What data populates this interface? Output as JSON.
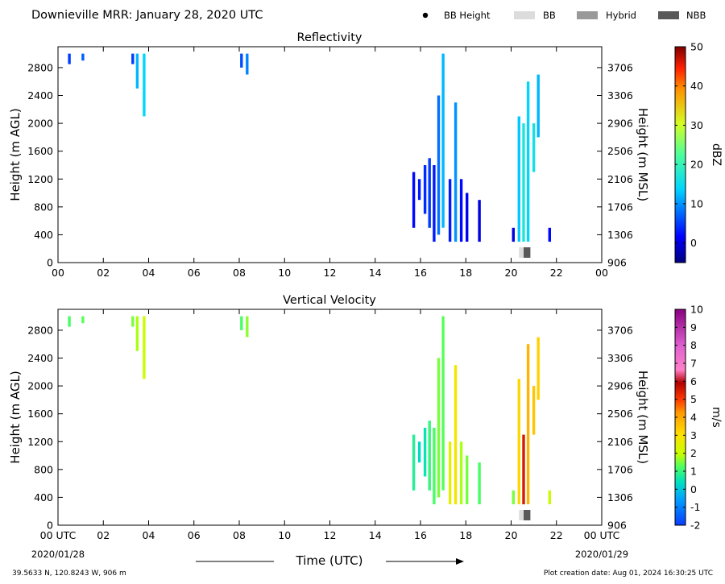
{
  "header": {
    "title": "Downieville MRR:  January 28, 2020 UTC",
    "legend": [
      {
        "label": "BB Height",
        "kind": "dot",
        "color": "#000000"
      },
      {
        "label": "BB",
        "kind": "box",
        "color": "#dcdcdc"
      },
      {
        "label": "Hybrid",
        "kind": "box",
        "color": "#999999"
      },
      {
        "label": "NBB",
        "kind": "box",
        "color": "#595959"
      }
    ]
  },
  "footer": {
    "location": "39.5633 N, 120.8243 W, 906 m",
    "creation": "Plot creation date: Aug 01, 2024 16:30:25 UTC",
    "xlabel": "Time (UTC)",
    "start_date": "2020/01/28",
    "end_date": "2020/01/29"
  },
  "chart_data": [
    {
      "type": "heatmap",
      "title": "Reflectivity",
      "ylabel": "Height (m AGL)",
      "ylabel_right": "Height (m MSL)",
      "xlim": [
        0,
        24
      ],
      "ylim": [
        0,
        3100
      ],
      "x_ticks": [
        "00",
        "02",
        "04",
        "06",
        "08",
        "10",
        "12",
        "14",
        "16",
        "18",
        "20",
        "22",
        "00"
      ],
      "y_ticks": [
        0,
        400,
        800,
        1200,
        1600,
        2000,
        2400,
        2800
      ],
      "y_ticks_right": [
        906,
        1306,
        1706,
        2106,
        2506,
        2906,
        3306,
        3706
      ],
      "colorbar": {
        "label": "dBZ",
        "min": -5,
        "max": 50,
        "ticks": [
          0,
          10,
          20,
          30,
          40,
          50
        ]
      },
      "bright_band": [
        {
          "class": "BB",
          "x_start": 20.35,
          "x_end": 20.55
        },
        {
          "class": "NBB",
          "x_start": 20.55,
          "x_end": 20.85
        }
      ],
      "echoes": [
        {
          "x": 0.5,
          "top": 3000,
          "bottom": 2850,
          "value": 5
        },
        {
          "x": 1.1,
          "top": 3000,
          "bottom": 2900,
          "value": 7
        },
        {
          "x": 3.3,
          "top": 3000,
          "bottom": 2850,
          "value": 5
        },
        {
          "x": 3.5,
          "top": 3000,
          "bottom": 2500,
          "value": 12
        },
        {
          "x": 3.8,
          "top": 3000,
          "bottom": 2100,
          "value": 14
        },
        {
          "x": 8.1,
          "top": 3000,
          "bottom": 2800,
          "value": 6
        },
        {
          "x": 8.35,
          "top": 3000,
          "bottom": 2700,
          "value": 9
        },
        {
          "x": 15.7,
          "top": 1300,
          "bottom": 500,
          "value": 2
        },
        {
          "x": 15.95,
          "top": 1200,
          "bottom": 900,
          "value": 3
        },
        {
          "x": 16.2,
          "top": 1400,
          "bottom": 700,
          "value": 4
        },
        {
          "x": 16.4,
          "top": 1500,
          "bottom": 500,
          "value": 5
        },
        {
          "x": 16.6,
          "top": 1400,
          "bottom": 300,
          "value": 3
        },
        {
          "x": 16.8,
          "top": 2400,
          "bottom": 400,
          "value": 8
        },
        {
          "x": 17.0,
          "top": 3000,
          "bottom": 500,
          "value": 12
        },
        {
          "x": 17.3,
          "top": 1200,
          "bottom": 300,
          "value": 3
        },
        {
          "x": 17.55,
          "top": 2300,
          "bottom": 300,
          "value": 10
        },
        {
          "x": 17.8,
          "top": 1200,
          "bottom": 300,
          "value": 2
        },
        {
          "x": 18.05,
          "top": 1000,
          "bottom": 300,
          "value": 1
        },
        {
          "x": 18.6,
          "top": 900,
          "bottom": 300,
          "value": 0
        },
        {
          "x": 20.1,
          "top": 500,
          "bottom": 300,
          "value": 0
        },
        {
          "x": 20.35,
          "top": 2100,
          "bottom": 300,
          "value": 13
        },
        {
          "x": 20.55,
          "top": 2000,
          "bottom": 300,
          "value": 17
        },
        {
          "x": 20.75,
          "top": 2600,
          "bottom": 300,
          "value": 14
        },
        {
          "x": 21.0,
          "top": 2000,
          "bottom": 1300,
          "value": 16
        },
        {
          "x": 21.2,
          "top": 2700,
          "bottom": 1800,
          "value": 12
        },
        {
          "x": 21.7,
          "top": 500,
          "bottom": 300,
          "value": 2
        }
      ]
    },
    {
      "type": "heatmap",
      "title": "Vertical Velocity",
      "ylabel": "Height (m AGL)",
      "ylabel_right": "Height (m MSL)",
      "xlim": [
        0,
        24
      ],
      "ylim": [
        0,
        3100
      ],
      "x_ticks": [
        "00 UTC",
        "02",
        "04",
        "06",
        "08",
        "10",
        "12",
        "14",
        "16",
        "18",
        "20",
        "22",
        "00 UTC"
      ],
      "y_ticks": [
        0,
        400,
        800,
        1200,
        1600,
        2000,
        2400,
        2800
      ],
      "y_ticks_right": [
        906,
        1306,
        1706,
        2106,
        2506,
        2906,
        3306,
        3706
      ],
      "colorbar": {
        "label": "m/s",
        "min": -2,
        "max": 10,
        "ticks": [
          -2,
          -1,
          0,
          1,
          2,
          3,
          4,
          5,
          6,
          7,
          8,
          9,
          10
        ]
      },
      "bright_band": [
        {
          "class": "BB",
          "x_start": 20.35,
          "x_end": 20.55
        },
        {
          "class": "NBB",
          "x_start": 20.55,
          "x_end": 20.85
        }
      ],
      "echoes": [
        {
          "x": 0.5,
          "top": 3000,
          "bottom": 2850,
          "value": 1.2
        },
        {
          "x": 1.1,
          "top": 3000,
          "bottom": 2900,
          "value": 1.3
        },
        {
          "x": 3.3,
          "top": 3000,
          "bottom": 2850,
          "value": 1.5
        },
        {
          "x": 3.5,
          "top": 3000,
          "bottom": 2500,
          "value": 1.8
        },
        {
          "x": 3.8,
          "top": 3000,
          "bottom": 2100,
          "value": 2.0
        },
        {
          "x": 8.1,
          "top": 3000,
          "bottom": 2800,
          "value": 1.2
        },
        {
          "x": 8.35,
          "top": 3000,
          "bottom": 2700,
          "value": 1.6
        },
        {
          "x": 15.7,
          "top": 1300,
          "bottom": 500,
          "value": 0.8
        },
        {
          "x": 15.95,
          "top": 1200,
          "bottom": 900,
          "value": 0.3
        },
        {
          "x": 16.2,
          "top": 1400,
          "bottom": 700,
          "value": 0.5
        },
        {
          "x": 16.4,
          "top": 1500,
          "bottom": 500,
          "value": 1.0
        },
        {
          "x": 16.6,
          "top": 1400,
          "bottom": 300,
          "value": 1.2
        },
        {
          "x": 16.8,
          "top": 2400,
          "bottom": 400,
          "value": 1.5
        },
        {
          "x": 17.0,
          "top": 3000,
          "bottom": 500,
          "value": 1.3
        },
        {
          "x": 17.3,
          "top": 1200,
          "bottom": 300,
          "value": 2.5
        },
        {
          "x": 17.55,
          "top": 2300,
          "bottom": 300,
          "value": 2.8
        },
        {
          "x": 17.8,
          "top": 1200,
          "bottom": 300,
          "value": 1.8
        },
        {
          "x": 18.05,
          "top": 1000,
          "bottom": 300,
          "value": 1.5
        },
        {
          "x": 18.6,
          "top": 900,
          "bottom": 300,
          "value": 1.2
        },
        {
          "x": 20.1,
          "top": 500,
          "bottom": 300,
          "value": 1.5
        },
        {
          "x": 20.35,
          "top": 2100,
          "bottom": 300,
          "value": 3.2
        },
        {
          "x": 20.55,
          "top": 1300,
          "bottom": 300,
          "value": 5.5
        },
        {
          "x": 20.75,
          "top": 2600,
          "bottom": 300,
          "value": 3.8
        },
        {
          "x": 21.0,
          "top": 2000,
          "bottom": 1300,
          "value": 3.5
        },
        {
          "x": 21.2,
          "top": 2700,
          "bottom": 1800,
          "value": 3.3
        },
        {
          "x": 21.7,
          "top": 500,
          "bottom": 300,
          "value": 2.0
        }
      ]
    }
  ]
}
